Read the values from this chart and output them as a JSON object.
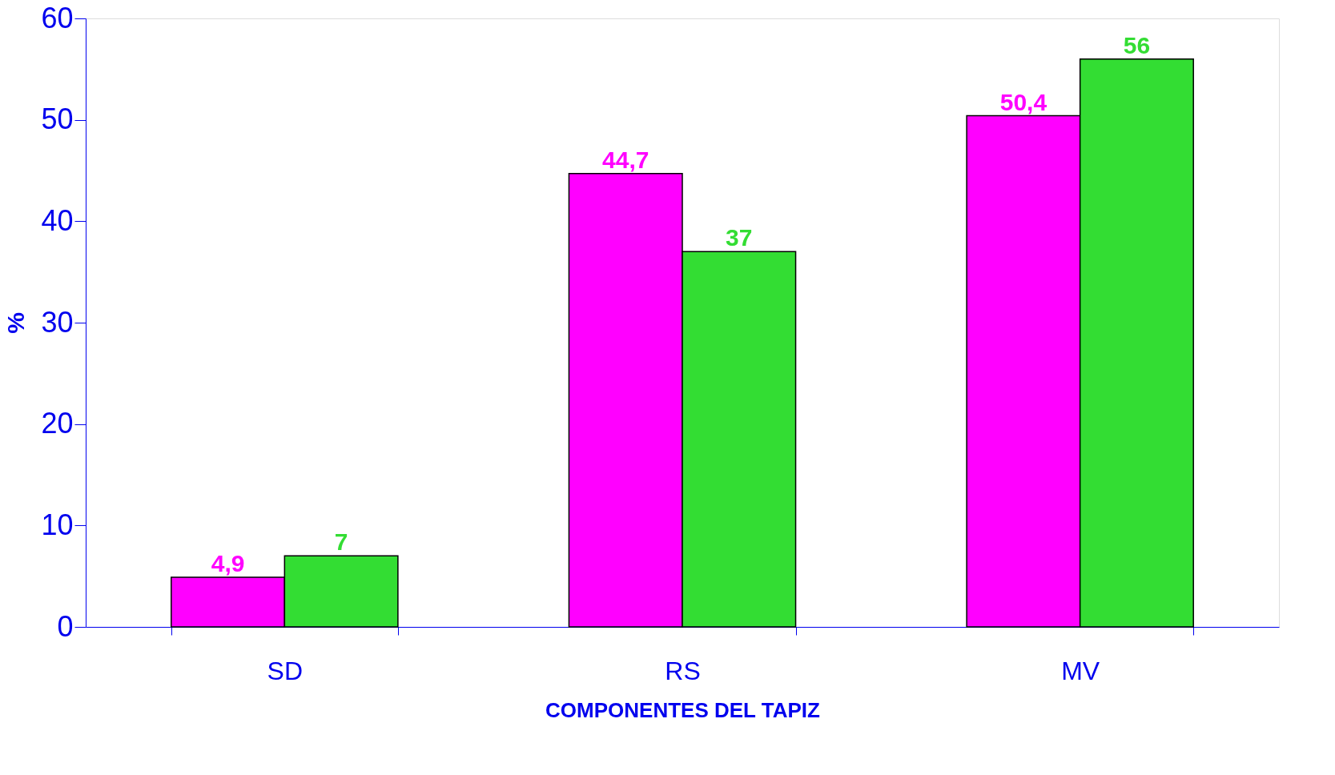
{
  "chart_data": {
    "type": "bar",
    "xlabel": "COMPONENTES DEL TAPIZ",
    "ylabel": "%",
    "categories": [
      "SD",
      "RS",
      "MV"
    ],
    "series": [
      {
        "color": "#ff00ff",
        "values": [
          4.9,
          44.7,
          50.4
        ],
        "value_labels": [
          "4,9",
          "44,7",
          "50,4"
        ]
      },
      {
        "color": "#33dd33",
        "values": [
          7,
          37,
          56
        ],
        "value_labels": [
          "7",
          "37",
          "56"
        ]
      }
    ],
    "ylim": [
      0,
      60
    ],
    "yticks": [
      0,
      10,
      20,
      30,
      40,
      50,
      60
    ],
    "grid": false,
    "legend": false
  }
}
